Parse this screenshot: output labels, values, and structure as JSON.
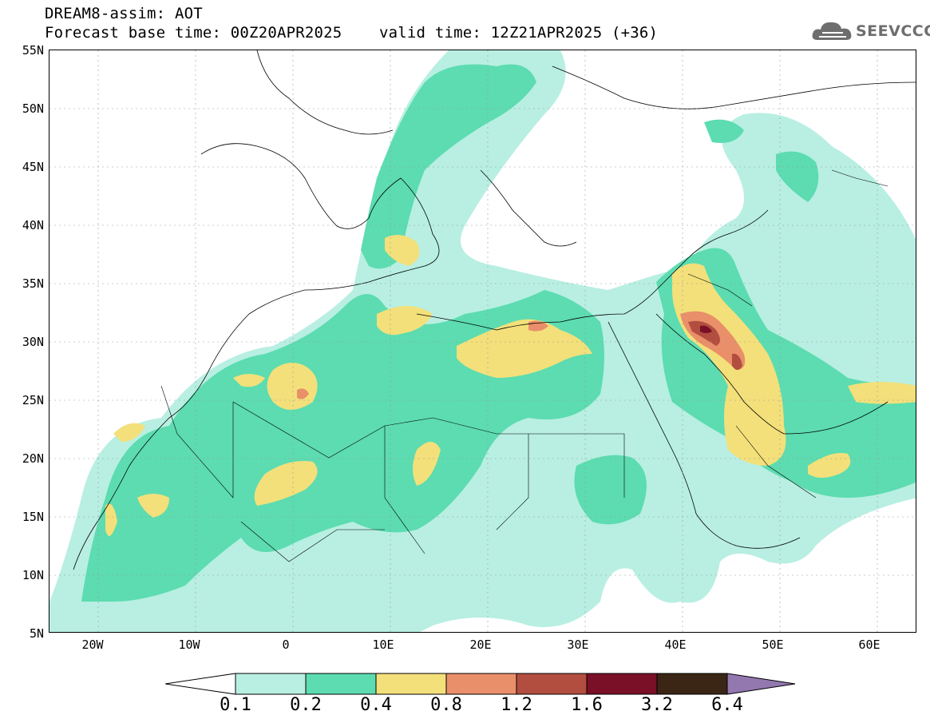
{
  "header": {
    "line1": "DREAM8-assim: AOT",
    "line2": "Forecast base time: 00Z20APR2025    valid time: 12Z21APR2025 (+36)"
  },
  "logo": {
    "text": "SEEVCCC",
    "icon": "cloud-icon"
  },
  "axes": {
    "lat_labels": [
      "55N",
      "50N",
      "45N",
      "40N",
      "35N",
      "30N",
      "25N",
      "20N",
      "15N",
      "10N",
      "5N"
    ],
    "lon_labels": [
      "20W",
      "10W",
      "0",
      "10E",
      "20E",
      "30E",
      "40E",
      "50E",
      "60E"
    ]
  },
  "legend": {
    "labels": [
      "0.1",
      "0.2",
      "0.4",
      "0.8",
      "1.2",
      "1.6",
      "3.2",
      "6.4"
    ],
    "colors": [
      "#ffffff",
      "#b8efe2",
      "#5cdcb0",
      "#f3e07a",
      "#e98f6a",
      "#b24e3f",
      "#7a0f28",
      "#3b2514",
      "#9378b0"
    ]
  }
}
